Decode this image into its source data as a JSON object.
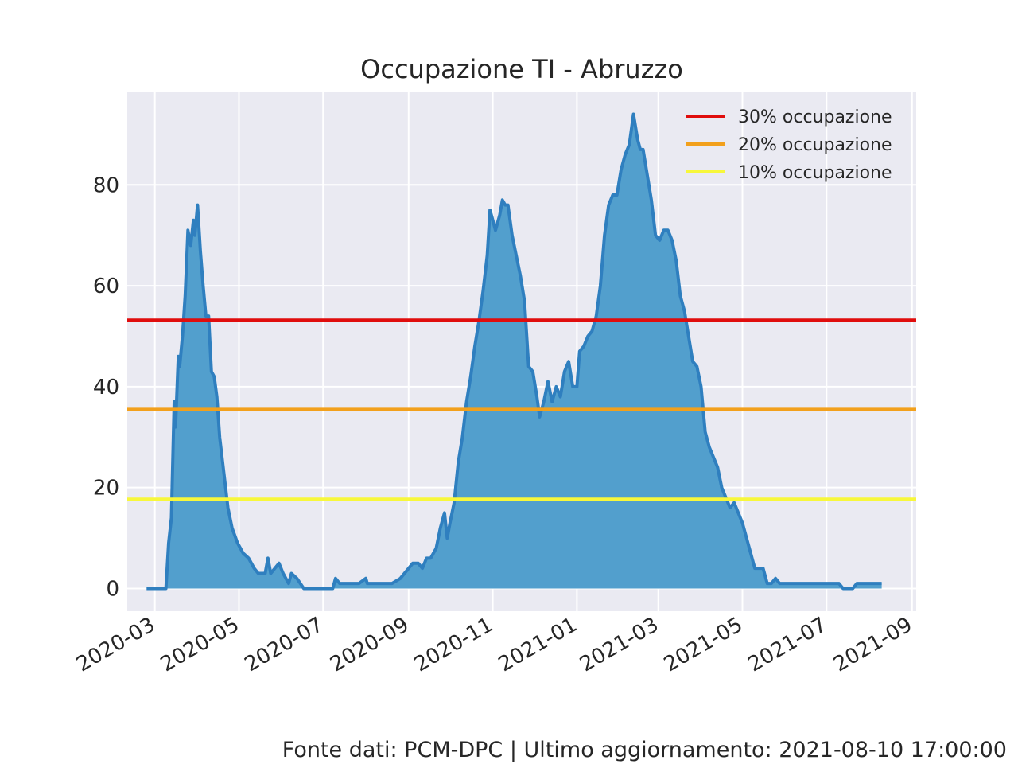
{
  "chart_data": {
    "type": "area",
    "title": "Occupazione TI - Abruzzo",
    "xlabel": "",
    "ylabel": "",
    "xlim": [
      "2020-02-10",
      "2021-09-04"
    ],
    "ylim": [
      -4.5,
      98.5
    ],
    "grid": true,
    "legend_position": "top-right",
    "x_ticks": [
      "2020-03",
      "2020-05",
      "2020-07",
      "2020-09",
      "2020-11",
      "2021-01",
      "2021-03",
      "2021-05",
      "2021-07",
      "2021-09"
    ],
    "y_ticks": [
      "0",
      "20",
      "40",
      "60",
      "80"
    ],
    "y_tick_values": [
      0,
      20,
      40,
      60,
      80
    ],
    "series": [
      {
        "color": "#2f7fbf",
        "fill": "#529fcd",
        "points": [
          [
            "2020-02-24",
            0
          ],
          [
            "2020-03-09",
            0
          ],
          [
            "2020-03-11",
            9
          ],
          [
            "2020-03-13",
            14
          ],
          [
            "2020-03-15",
            37
          ],
          [
            "2020-03-16",
            32
          ],
          [
            "2020-03-18",
            46
          ],
          [
            "2020-03-19",
            44
          ],
          [
            "2020-03-21",
            50
          ],
          [
            "2020-03-23",
            58
          ],
          [
            "2020-03-25",
            71
          ],
          [
            "2020-03-27",
            68
          ],
          [
            "2020-03-29",
            73
          ],
          [
            "2020-03-30",
            70
          ],
          [
            "2020-04-01",
            76
          ],
          [
            "2020-04-03",
            67
          ],
          [
            "2020-04-05",
            60
          ],
          [
            "2020-04-07",
            54
          ],
          [
            "2020-04-09",
            54
          ],
          [
            "2020-04-11",
            43
          ],
          [
            "2020-04-13",
            42
          ],
          [
            "2020-04-15",
            38
          ],
          [
            "2020-04-17",
            30
          ],
          [
            "2020-04-20",
            23
          ],
          [
            "2020-04-23",
            16
          ],
          [
            "2020-04-26",
            12
          ],
          [
            "2020-04-30",
            9
          ],
          [
            "2020-05-04",
            7
          ],
          [
            "2020-05-08",
            6
          ],
          [
            "2020-05-12",
            4
          ],
          [
            "2020-05-15",
            3
          ],
          [
            "2020-05-20",
            3
          ],
          [
            "2020-05-22",
            6
          ],
          [
            "2020-05-24",
            3
          ],
          [
            "2020-05-27",
            4
          ],
          [
            "2020-05-30",
            5
          ],
          [
            "2020-06-02",
            3
          ],
          [
            "2020-06-06",
            1
          ],
          [
            "2020-06-08",
            3
          ],
          [
            "2020-06-12",
            2
          ],
          [
            "2020-06-17",
            0
          ],
          [
            "2020-07-01",
            0
          ],
          [
            "2020-07-08",
            0
          ],
          [
            "2020-07-10",
            2
          ],
          [
            "2020-07-13",
            1
          ],
          [
            "2020-07-27",
            1
          ],
          [
            "2020-08-01",
            2
          ],
          [
            "2020-08-02",
            1
          ],
          [
            "2020-08-20",
            1
          ],
          [
            "2020-08-26",
            2
          ],
          [
            "2020-09-01",
            4
          ],
          [
            "2020-09-04",
            5
          ],
          [
            "2020-09-08",
            5
          ],
          [
            "2020-09-11",
            4
          ],
          [
            "2020-09-14",
            6
          ],
          [
            "2020-09-17",
            6
          ],
          [
            "2020-09-21",
            8
          ],
          [
            "2020-09-24",
            12
          ],
          [
            "2020-09-27",
            15
          ],
          [
            "2020-09-29",
            10
          ],
          [
            "2020-10-01",
            13
          ],
          [
            "2020-10-04",
            17
          ],
          [
            "2020-10-07",
            25
          ],
          [
            "2020-10-10",
            30
          ],
          [
            "2020-10-13",
            37
          ],
          [
            "2020-10-16",
            42
          ],
          [
            "2020-10-19",
            48
          ],
          [
            "2020-10-22",
            53
          ],
          [
            "2020-10-25",
            59
          ],
          [
            "2020-10-28",
            66
          ],
          [
            "2020-10-30",
            75
          ],
          [
            "2020-11-01",
            73
          ],
          [
            "2020-11-03",
            71
          ],
          [
            "2020-11-06",
            74
          ],
          [
            "2020-11-08",
            77
          ],
          [
            "2020-11-10",
            76
          ],
          [
            "2020-11-12",
            76
          ],
          [
            "2020-11-15",
            70
          ],
          [
            "2020-11-18",
            66
          ],
          [
            "2020-11-21",
            62
          ],
          [
            "2020-11-24",
            57
          ],
          [
            "2020-11-27",
            44
          ],
          [
            "2020-11-30",
            43
          ],
          [
            "2020-12-03",
            38
          ],
          [
            "2020-12-05",
            34
          ],
          [
            "2020-12-08",
            37
          ],
          [
            "2020-12-11",
            41
          ],
          [
            "2020-12-14",
            37
          ],
          [
            "2020-12-17",
            40
          ],
          [
            "2020-12-20",
            38
          ],
          [
            "2020-12-23",
            43
          ],
          [
            "2020-12-26",
            45
          ],
          [
            "2020-12-29",
            40
          ],
          [
            "2021-01-01",
            40
          ],
          [
            "2021-01-03",
            47
          ],
          [
            "2021-01-06",
            48
          ],
          [
            "2021-01-09",
            50
          ],
          [
            "2021-01-12",
            51
          ],
          [
            "2021-01-15",
            54
          ],
          [
            "2021-01-18",
            60
          ],
          [
            "2021-01-21",
            70
          ],
          [
            "2021-01-24",
            76
          ],
          [
            "2021-01-27",
            78
          ],
          [
            "2021-01-30",
            78
          ],
          [
            "2021-02-02",
            83
          ],
          [
            "2021-02-05",
            86
          ],
          [
            "2021-02-08",
            88
          ],
          [
            "2021-02-11",
            94
          ],
          [
            "2021-02-14",
            89
          ],
          [
            "2021-02-16",
            87
          ],
          [
            "2021-02-18",
            87
          ],
          [
            "2021-02-21",
            82
          ],
          [
            "2021-02-24",
            77
          ],
          [
            "2021-02-27",
            70
          ],
          [
            "2021-03-02",
            69
          ],
          [
            "2021-03-05",
            71
          ],
          [
            "2021-03-08",
            71
          ],
          [
            "2021-03-11",
            69
          ],
          [
            "2021-03-14",
            65
          ],
          [
            "2021-03-17",
            58
          ],
          [
            "2021-03-20",
            55
          ],
          [
            "2021-03-23",
            50
          ],
          [
            "2021-03-26",
            45
          ],
          [
            "2021-03-29",
            44
          ],
          [
            "2021-04-01",
            40
          ],
          [
            "2021-04-04",
            31
          ],
          [
            "2021-04-07",
            28
          ],
          [
            "2021-04-10",
            26
          ],
          [
            "2021-04-13",
            24
          ],
          [
            "2021-04-16",
            20
          ],
          [
            "2021-04-19",
            18
          ],
          [
            "2021-04-22",
            16
          ],
          [
            "2021-04-25",
            17
          ],
          [
            "2021-04-28",
            15
          ],
          [
            "2021-05-01",
            13
          ],
          [
            "2021-05-04",
            10
          ],
          [
            "2021-05-07",
            7
          ],
          [
            "2021-05-10",
            4
          ],
          [
            "2021-05-13",
            4
          ],
          [
            "2021-05-16",
            4
          ],
          [
            "2021-05-19",
            1
          ],
          [
            "2021-05-22",
            1
          ],
          [
            "2021-05-25",
            2
          ],
          [
            "2021-05-28",
            1
          ],
          [
            "2021-06-15",
            1
          ],
          [
            "2021-07-10",
            1
          ],
          [
            "2021-07-13",
            0
          ],
          [
            "2021-07-20",
            0
          ],
          [
            "2021-07-23",
            1
          ],
          [
            "2021-08-10",
            1
          ]
        ]
      }
    ],
    "reference_lines": [
      {
        "name": "30% occupazione",
        "value": 53.2,
        "color": "#e00d0d"
      },
      {
        "name": "20% occupazione",
        "value": 35.5,
        "color": "#f2a01c"
      },
      {
        "name": "10% occupazione",
        "value": 17.7,
        "color": "#f7f73b"
      }
    ]
  },
  "footer": "Fonte dati: PCM-DPC | Ultimo aggiornamento: 2021-08-10 17:00:00"
}
